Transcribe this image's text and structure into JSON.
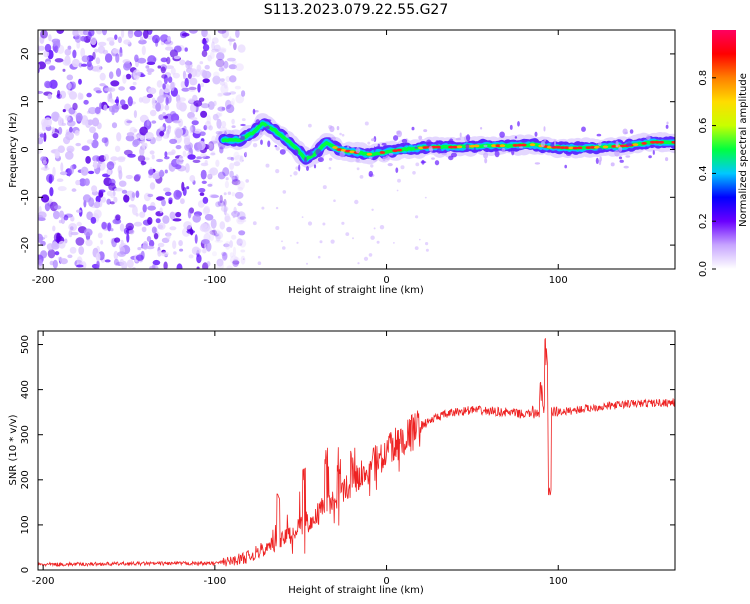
{
  "title": "S113.2023.079.22.55.G27",
  "chart_data": [
    {
      "type": "heatmap",
      "name": "spectrogram",
      "xlabel": "Height of straight line (km)",
      "ylabel": "Frequency (Hz)",
      "xlim": [
        -203,
        168
      ],
      "ylim": [
        -25,
        25
      ],
      "xticks": [
        -200,
        -100,
        0,
        100
      ],
      "yticks": [
        -20,
        -10,
        0,
        10,
        20
      ],
      "colorbar": {
        "label": "Normalized spectral amplitude",
        "range": [
          0,
          1
        ],
        "ticks": [
          "0.0",
          "0.2",
          "0.4",
          "0.6",
          "0.8"
        ],
        "tick_values": [
          0.0,
          0.2,
          0.4,
          0.6,
          0.8
        ],
        "colors": [
          "#ffffff",
          "#c7a5ff",
          "#6a00ff",
          "#0000ff",
          "#00c8ff",
          "#00ff40",
          "#c8ff00",
          "#ffdc00",
          "#ff8000",
          "#ff0000",
          "#ff0060"
        ]
      },
      "noise_region_x": [
        -203,
        -95
      ],
      "signal_ridge": [
        {
          "x": -95,
          "y": 2.0
        },
        {
          "x": -85,
          "y": 2.0
        },
        {
          "x": -78,
          "y": 3.5
        },
        {
          "x": -72,
          "y": 5.5
        },
        {
          "x": -65,
          "y": 4.0
        },
        {
          "x": -58,
          "y": 2.0
        },
        {
          "x": -52,
          "y": 0.0
        },
        {
          "x": -47,
          "y": -2.0
        },
        {
          "x": -42,
          "y": -1.0
        },
        {
          "x": -35,
          "y": 1.5
        },
        {
          "x": -28,
          "y": 0.0
        },
        {
          "x": -20,
          "y": -0.5
        },
        {
          "x": -10,
          "y": -1.0
        },
        {
          "x": 0,
          "y": -0.5
        },
        {
          "x": 10,
          "y": 0.0
        },
        {
          "x": 25,
          "y": 0.5
        },
        {
          "x": 40,
          "y": 0.5
        },
        {
          "x": 55,
          "y": 0.8
        },
        {
          "x": 70,
          "y": 0.8
        },
        {
          "x": 85,
          "y": 1.0
        },
        {
          "x": 95,
          "y": 0.5
        },
        {
          "x": 110,
          "y": 0.3
        },
        {
          "x": 125,
          "y": 0.5
        },
        {
          "x": 140,
          "y": 0.8
        },
        {
          "x": 155,
          "y": 1.5
        },
        {
          "x": 168,
          "y": 1.5
        }
      ]
    },
    {
      "type": "line",
      "name": "snr",
      "color": "#ee2222",
      "xlabel": "Height of straight line (km)",
      "ylabel": "SNR (10 * v/v)",
      "xlim": [
        -203,
        168
      ],
      "ylim": [
        0,
        530
      ],
      "xticks": [
        -200,
        -100,
        0,
        100
      ],
      "yticks": [
        0,
        100,
        200,
        300,
        400,
        500
      ],
      "trend": [
        {
          "x": -203,
          "y": 12
        },
        {
          "x": -150,
          "y": 14
        },
        {
          "x": -100,
          "y": 15
        },
        {
          "x": -90,
          "y": 20
        },
        {
          "x": -80,
          "y": 30
        },
        {
          "x": -70,
          "y": 50
        },
        {
          "x": -60,
          "y": 70
        },
        {
          "x": -50,
          "y": 95
        },
        {
          "x": -40,
          "y": 125
        },
        {
          "x": -30,
          "y": 160
        },
        {
          "x": -20,
          "y": 195
        },
        {
          "x": -10,
          "y": 230
        },
        {
          "x": 0,
          "y": 260
        },
        {
          "x": 10,
          "y": 290
        },
        {
          "x": 20,
          "y": 320
        },
        {
          "x": 30,
          "y": 340
        },
        {
          "x": 40,
          "y": 350
        },
        {
          "x": 50,
          "y": 355
        },
        {
          "x": 60,
          "y": 352
        },
        {
          "x": 70,
          "y": 350
        },
        {
          "x": 80,
          "y": 345
        },
        {
          "x": 88,
          "y": 350
        },
        {
          "x": 96,
          "y": 350
        },
        {
          "x": 105,
          "y": 352
        },
        {
          "x": 120,
          "y": 360
        },
        {
          "x": 140,
          "y": 368
        },
        {
          "x": 168,
          "y": 372
        }
      ],
      "spikes": [
        {
          "x": -63,
          "y": 170
        },
        {
          "x": -48,
          "y": 230
        },
        {
          "x": -35,
          "y": 275
        },
        {
          "x": -28,
          "y": 240
        },
        {
          "x": -20,
          "y": 265
        },
        {
          "x": 93,
          "y": 525
        },
        {
          "x": 95,
          "y": 190
        },
        {
          "x": 90,
          "y": 420
        }
      ]
    }
  ]
}
